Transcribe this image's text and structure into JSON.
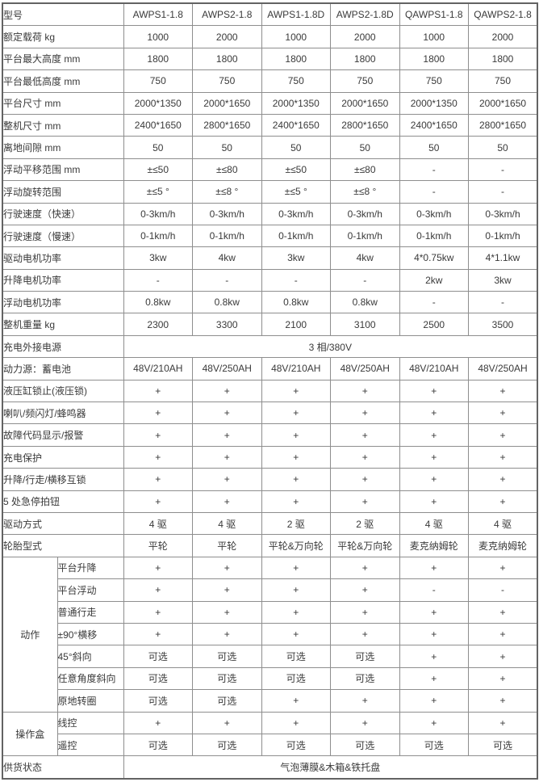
{
  "table": {
    "header": {
      "label": "型号",
      "models": [
        "AWPS1-1.8",
        "AWPS2-1.8",
        "AWPS1-1.8D",
        "AWPS2-1.8D",
        "QAWPS1-1.8",
        "QAWPS2-1.8"
      ]
    },
    "spec_rows": [
      {
        "label": "额定载荷 kg",
        "values": [
          "1000",
          "2000",
          "1000",
          "2000",
          "1000",
          "2000"
        ]
      },
      {
        "label": "平台最大高度 mm",
        "values": [
          "1800",
          "1800",
          "1800",
          "1800",
          "1800",
          "1800"
        ]
      },
      {
        "label": "平台最低高度 mm",
        "values": [
          "750",
          "750",
          "750",
          "750",
          "750",
          "750"
        ]
      },
      {
        "label": "平台尺寸 mm",
        "values": [
          "2000*1350",
          "2000*1650",
          "2000*1350",
          "2000*1650",
          "2000*1350",
          "2000*1650"
        ]
      },
      {
        "label": "整机尺寸 mm",
        "values": [
          "2400*1650",
          "2800*1650",
          "2400*1650",
          "2800*1650",
          "2400*1650",
          "2800*1650"
        ]
      },
      {
        "label": "离地间隙 mm",
        "values": [
          "50",
          "50",
          "50",
          "50",
          "50",
          "50"
        ]
      },
      {
        "label": "浮动平移范围 mm",
        "values": [
          "±≤50",
          "±≤80",
          "±≤50",
          "±≤80",
          "-",
          "-"
        ]
      },
      {
        "label": "浮动旋转范围",
        "values": [
          "±≤5 °",
          "±≤8 °",
          "±≤5 °",
          "±≤8 °",
          "-",
          "-"
        ]
      },
      {
        "label": "行驶速度（快速）",
        "values": [
          "0-3km/h",
          "0-3km/h",
          "0-3km/h",
          "0-3km/h",
          "0-3km/h",
          "0-3km/h"
        ]
      },
      {
        "label": "行驶速度（慢速）",
        "values": [
          "0-1km/h",
          "0-1km/h",
          "0-1km/h",
          "0-1km/h",
          "0-1km/h",
          "0-1km/h"
        ]
      },
      {
        "label": "驱动电机功率",
        "values": [
          "3kw",
          "4kw",
          "3kw",
          "4kw",
          "4*0.75kw",
          "4*1.1kw"
        ]
      },
      {
        "label": "升降电机功率",
        "values": [
          "-",
          "-",
          "-",
          "-",
          "2kw",
          "3kw"
        ]
      },
      {
        "label": "浮动电机功率",
        "values": [
          "0.8kw",
          "0.8kw",
          "0.8kw",
          "0.8kw",
          "-",
          "-"
        ]
      },
      {
        "label": "整机重量 kg",
        "values": [
          "2300",
          "3300",
          "2100",
          "3100",
          "2500",
          "3500"
        ]
      },
      {
        "label": "充电外接电源",
        "merged": "3 相/380V"
      },
      {
        "label": "动力源：蓄电池",
        "values": [
          "48V/210AH",
          "48V/250AH",
          "48V/210AH",
          "48V/250AH",
          "48V/210AH",
          "48V/250AH"
        ]
      },
      {
        "label": "液压缸锁止(液压锁)",
        "values": [
          "+",
          "+",
          "+",
          "+",
          "+",
          "+"
        ]
      },
      {
        "label": "喇叭/频闪灯/蜂鸣器",
        "values": [
          "+",
          "+",
          "+",
          "+",
          "+",
          "+"
        ]
      },
      {
        "label": "故障代码显示/报警",
        "values": [
          "+",
          "+",
          "+",
          "+",
          "+",
          "+"
        ]
      },
      {
        "label": "充电保护",
        "values": [
          "+",
          "+",
          "+",
          "+",
          "+",
          "+"
        ]
      },
      {
        "label": "升降/行走/横移互锁",
        "values": [
          "+",
          "+",
          "+",
          "+",
          "+",
          "+"
        ]
      },
      {
        "label": "5 处急停拍钮",
        "values": [
          "+",
          "+",
          "+",
          "+",
          "+",
          "+"
        ]
      },
      {
        "label": "驱动方式",
        "values": [
          "4 驱",
          "4 驱",
          "2 驱",
          "2 驱",
          "4 驱",
          "4 驱"
        ]
      },
      {
        "label": "轮胎型式",
        "values": [
          "平轮",
          "平轮",
          "平轮&万向轮",
          "平轮&万向轮",
          "麦克纳姆轮",
          "麦克纳姆轮"
        ]
      }
    ],
    "groups": [
      {
        "label": "动作",
        "rows": [
          {
            "label": "平台升降",
            "values": [
              "+",
              "+",
              "+",
              "+",
              "+",
              "+"
            ]
          },
          {
            "label": "平台浮动",
            "values": [
              "+",
              "+",
              "+",
              "+",
              "-",
              "-"
            ]
          },
          {
            "label": "普通行走",
            "values": [
              "+",
              "+",
              "+",
              "+",
              "+",
              "+"
            ]
          },
          {
            "label": "±90°横移",
            "values": [
              "+",
              "+",
              "+",
              "+",
              "+",
              "+"
            ]
          },
          {
            "label": "45°斜向",
            "values": [
              "可选",
              "可选",
              "可选",
              "可选",
              "+",
              "+"
            ]
          },
          {
            "label": "任意角度斜向",
            "values": [
              "可选",
              "可选",
              "可选",
              "可选",
              "+",
              "+"
            ]
          },
          {
            "label": "原地转圈",
            "values": [
              "可选",
              "可选",
              "+",
              "+",
              "+",
              "+"
            ]
          }
        ]
      },
      {
        "label": "操作盒",
        "rows": [
          {
            "label": "线控",
            "values": [
              "+",
              "+",
              "+",
              "+",
              "+",
              "+"
            ]
          },
          {
            "label": "遥控",
            "values": [
              "可选",
              "可选",
              "可选",
              "可选",
              "可选",
              "可选"
            ]
          }
        ]
      }
    ],
    "footer": {
      "label": "供货状态",
      "merged": "气泡薄膜&木箱&铁托盘"
    }
  }
}
